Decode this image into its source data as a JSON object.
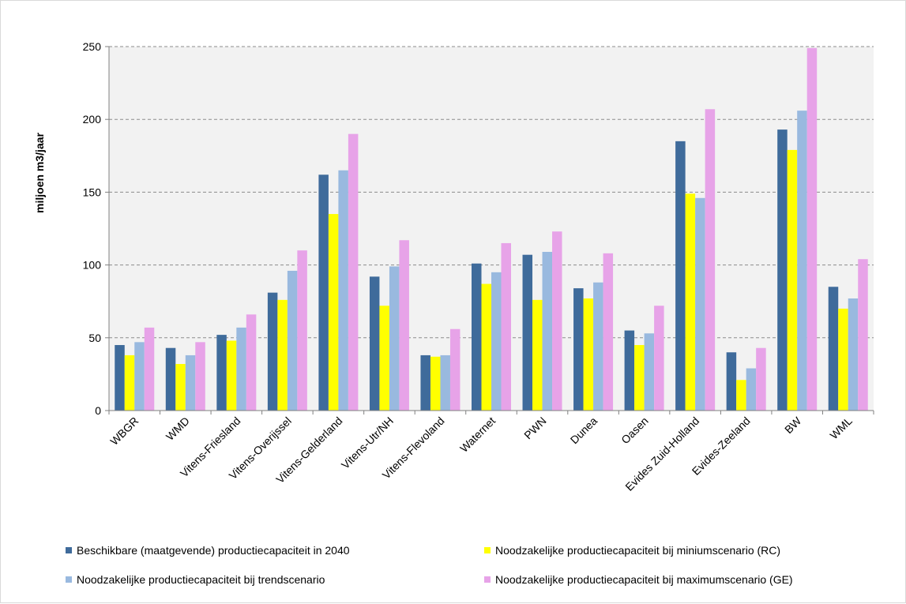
{
  "chart_data": {
    "type": "bar",
    "ylabel": "miljoen m3/jaar",
    "xlabel": "",
    "ylim": [
      0,
      250
    ],
    "yticks": [
      0,
      50,
      100,
      150,
      200,
      250
    ],
    "grid": true,
    "legend_position": "bottom",
    "categories": [
      "WBGR",
      "WMD",
      "Vitens-Friesland",
      "Vitens-Overijssel",
      "Vitens-Gelderland",
      "Vitens-Utr/NH",
      "Vitens-Flevoland",
      "Waternet",
      "PWN",
      "Dunea",
      "Oasen",
      "Evides Zuid-Holland",
      "Evides-Zeeland",
      "BW",
      "WML"
    ],
    "series": [
      {
        "name": "Beschikbare (maatgevende) productiecapaciteit in 2040",
        "color": "#3f6b9b",
        "values": [
          45,
          43,
          52,
          81,
          162,
          92,
          38,
          101,
          107,
          84,
          55,
          185,
          40,
          193,
          85
        ]
      },
      {
        "name": "Noodzakelijke productiecapaciteit bij miniumscenario (RC)",
        "color": "#ffff00",
        "values": [
          38,
          32,
          48,
          76,
          135,
          72,
          37,
          87,
          76,
          77,
          45,
          149,
          21,
          179,
          70
        ]
      },
      {
        "name": "Noodzakelijke productiecapaciteit bij trendscenario",
        "color": "#99b9df",
        "values": [
          47,
          38,
          57,
          96,
          165,
          99,
          38,
          95,
          109,
          88,
          53,
          146,
          29,
          206,
          77
        ]
      },
      {
        "name": "Noodzakelijke productiecapaciteit bij maximumscenario (GE)",
        "color": "#e7a3e8",
        "values": [
          57,
          47,
          66,
          110,
          190,
          117,
          56,
          115,
          123,
          108,
          72,
          207,
          43,
          249,
          104
        ]
      }
    ]
  }
}
